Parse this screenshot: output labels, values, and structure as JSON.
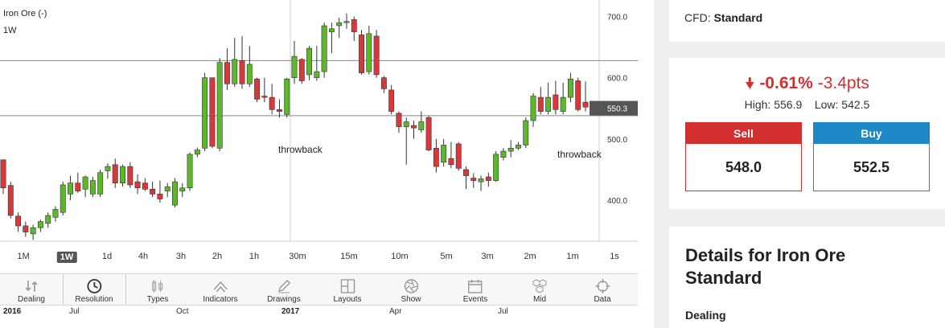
{
  "chart": {
    "instrument": "Iron Ore (-)",
    "period": "1W",
    "current_price_label": "550.3",
    "price_axis": [
      "700.0",
      "600.0",
      "500.0",
      "400.0"
    ],
    "annotations": [
      "throwback",
      "throwback"
    ],
    "colors": {
      "up": "#5cb82a",
      "down": "#d9383a",
      "price_tag": "#555555"
    }
  },
  "chart_data": {
    "type": "candlestick",
    "ylim": [
      333,
      727
    ],
    "y_ticks": [
      700,
      600,
      500,
      400
    ],
    "horizontal_lines": [
      628,
      538
    ],
    "last_price": 550.3,
    "candles": [
      {
        "o": 466,
        "h": 466,
        "l": 410,
        "c": 420
      },
      {
        "o": 424,
        "h": 430,
        "l": 370,
        "c": 375
      },
      {
        "o": 374,
        "h": 380,
        "l": 348,
        "c": 358
      },
      {
        "o": 358,
        "h": 365,
        "l": 340,
        "c": 348
      },
      {
        "o": 345,
        "h": 360,
        "l": 335,
        "c": 355
      },
      {
        "o": 355,
        "h": 368,
        "l": 348,
        "c": 365
      },
      {
        "o": 362,
        "h": 380,
        "l": 355,
        "c": 375
      },
      {
        "o": 372,
        "h": 390,
        "l": 365,
        "c": 385
      },
      {
        "o": 380,
        "h": 430,
        "l": 375,
        "c": 425
      },
      {
        "o": 410,
        "h": 440,
        "l": 400,
        "c": 428
      },
      {
        "o": 428,
        "h": 445,
        "l": 412,
        "c": 415
      },
      {
        "o": 418,
        "h": 440,
        "l": 405,
        "c": 438
      },
      {
        "o": 410,
        "h": 438,
        "l": 405,
        "c": 432
      },
      {
        "o": 410,
        "h": 450,
        "l": 405,
        "c": 445
      },
      {
        "o": 448,
        "h": 460,
        "l": 435,
        "c": 455
      },
      {
        "o": 458,
        "h": 468,
        "l": 420,
        "c": 428
      },
      {
        "o": 428,
        "h": 458,
        "l": 422,
        "c": 455
      },
      {
        "o": 455,
        "h": 462,
        "l": 420,
        "c": 425
      },
      {
        "o": 430,
        "h": 442,
        "l": 410,
        "c": 420
      },
      {
        "o": 428,
        "h": 436,
        "l": 415,
        "c": 418
      },
      {
        "o": 418,
        "h": 430,
        "l": 405,
        "c": 410
      },
      {
        "o": 410,
        "h": 432,
        "l": 396,
        "c": 402
      },
      {
        "o": 415,
        "h": 428,
        "l": 405,
        "c": 422
      },
      {
        "o": 392,
        "h": 436,
        "l": 388,
        "c": 430
      },
      {
        "o": 415,
        "h": 428,
        "l": 405,
        "c": 420
      },
      {
        "o": 420,
        "h": 478,
        "l": 415,
        "c": 475
      },
      {
        "o": 475,
        "h": 486,
        "l": 470,
        "c": 482
      },
      {
        "o": 485,
        "h": 608,
        "l": 480,
        "c": 600
      },
      {
        "o": 600,
        "h": 598,
        "l": 485,
        "c": 488
      },
      {
        "o": 485,
        "h": 632,
        "l": 480,
        "c": 625
      },
      {
        "o": 625,
        "h": 648,
        "l": 580,
        "c": 590
      },
      {
        "o": 590,
        "h": 665,
        "l": 585,
        "c": 630
      },
      {
        "o": 628,
        "h": 668,
        "l": 582,
        "c": 590
      },
      {
        "o": 590,
        "h": 652,
        "l": 585,
        "c": 622
      },
      {
        "o": 598,
        "h": 600,
        "l": 560,
        "c": 565
      },
      {
        "o": 570,
        "h": 600,
        "l": 560,
        "c": 568
      },
      {
        "o": 568,
        "h": 590,
        "l": 540,
        "c": 548
      },
      {
        "o": 548,
        "h": 565,
        "l": 535,
        "c": 545
      },
      {
        "o": 540,
        "h": 600,
        "l": 535,
        "c": 598
      },
      {
        "o": 600,
        "h": 660,
        "l": 590,
        "c": 635
      },
      {
        "o": 630,
        "h": 632,
        "l": 590,
        "c": 595
      },
      {
        "o": 605,
        "h": 652,
        "l": 596,
        "c": 648
      },
      {
        "o": 600,
        "h": 652,
        "l": 595,
        "c": 610
      },
      {
        "o": 610,
        "h": 690,
        "l": 600,
        "c": 685
      },
      {
        "o": 675,
        "h": 690,
        "l": 640,
        "c": 680
      },
      {
        "o": 685,
        "h": 698,
        "l": 665,
        "c": 690
      },
      {
        "o": 690,
        "h": 705,
        "l": 680,
        "c": 692
      },
      {
        "o": 695,
        "h": 700,
        "l": 660,
        "c": 675
      },
      {
        "o": 670,
        "h": 678,
        "l": 605,
        "c": 608
      },
      {
        "o": 610,
        "h": 685,
        "l": 605,
        "c": 672
      },
      {
        "o": 668,
        "h": 678,
        "l": 600,
        "c": 605
      },
      {
        "o": 600,
        "h": 603,
        "l": 575,
        "c": 582
      },
      {
        "o": 580,
        "h": 588,
        "l": 540,
        "c": 545
      },
      {
        "o": 542,
        "h": 545,
        "l": 510,
        "c": 520
      },
      {
        "o": 520,
        "h": 535,
        "l": 458,
        "c": 528
      },
      {
        "o": 522,
        "h": 530,
        "l": 500,
        "c": 518
      },
      {
        "o": 515,
        "h": 545,
        "l": 510,
        "c": 528
      },
      {
        "o": 535,
        "h": 538,
        "l": 480,
        "c": 482
      },
      {
        "o": 485,
        "h": 500,
        "l": 445,
        "c": 455
      },
      {
        "o": 462,
        "h": 500,
        "l": 455,
        "c": 490
      },
      {
        "o": 468,
        "h": 495,
        "l": 452,
        "c": 458
      },
      {
        "o": 492,
        "h": 495,
        "l": 448,
        "c": 452
      },
      {
        "o": 450,
        "h": 455,
        "l": 418,
        "c": 440
      },
      {
        "o": 436,
        "h": 444,
        "l": 420,
        "c": 432
      },
      {
        "o": 430,
        "h": 440,
        "l": 415,
        "c": 435
      },
      {
        "o": 438,
        "h": 445,
        "l": 422,
        "c": 432
      },
      {
        "o": 432,
        "h": 480,
        "l": 430,
        "c": 475
      },
      {
        "o": 470,
        "h": 485,
        "l": 465,
        "c": 480
      },
      {
        "o": 480,
        "h": 498,
        "l": 470,
        "c": 485
      },
      {
        "o": 485,
        "h": 495,
        "l": 482,
        "c": 490
      },
      {
        "o": 490,
        "h": 535,
        "l": 485,
        "c": 530
      },
      {
        "o": 530,
        "h": 575,
        "l": 520,
        "c": 570
      },
      {
        "o": 568,
        "h": 585,
        "l": 540,
        "c": 545
      },
      {
        "o": 545,
        "h": 592,
        "l": 540,
        "c": 568
      },
      {
        "o": 572,
        "h": 595,
        "l": 540,
        "c": 548
      },
      {
        "o": 545,
        "h": 592,
        "l": 540,
        "c": 568
      },
      {
        "o": 568,
        "h": 608,
        "l": 560,
        "c": 598
      },
      {
        "o": 595,
        "h": 600,
        "l": 545,
        "c": 548
      },
      {
        "o": 560,
        "h": 594,
        "l": 545,
        "c": 552
      }
    ]
  },
  "resolutions": [
    {
      "label": "1M",
      "active": false
    },
    {
      "label": "1W",
      "active": true
    },
    {
      "label": "1d",
      "active": false
    },
    {
      "label": "4h",
      "active": false
    },
    {
      "label": "3h",
      "active": false
    },
    {
      "label": "2h",
      "active": false
    },
    {
      "label": "1h",
      "active": false
    },
    {
      "label": "30m",
      "active": false
    },
    {
      "label": "15m",
      "active": false
    },
    {
      "label": "10m",
      "active": false
    },
    {
      "label": "5m",
      "active": false
    },
    {
      "label": "3m",
      "active": false
    },
    {
      "label": "2m",
      "active": false
    },
    {
      "label": "1m",
      "active": false
    },
    {
      "label": "1s",
      "active": false
    }
  ],
  "toolbar": [
    {
      "label": "Dealing",
      "icon": "dealing-icon"
    },
    {
      "label": "Resolution",
      "icon": "clock-icon"
    },
    {
      "label": "Types",
      "icon": "candles-icon"
    },
    {
      "label": "Indicators",
      "icon": "indicators-icon"
    },
    {
      "label": "Drawings",
      "icon": "pencil-icon"
    },
    {
      "label": "Layouts",
      "icon": "layouts-icon"
    },
    {
      "label": "Show",
      "icon": "aperture-icon"
    },
    {
      "label": "Events",
      "icon": "events-icon"
    },
    {
      "label": "Mid",
      "icon": "hexagons-icon"
    },
    {
      "label": "Data",
      "icon": "crosshair-icon"
    }
  ],
  "timeline": [
    {
      "label": "2016",
      "year": true
    },
    {
      "label": "Jul",
      "year": false
    },
    {
      "label": "Oct",
      "year": false
    },
    {
      "label": "2017",
      "year": true
    },
    {
      "label": "Apr",
      "year": false
    },
    {
      "label": "Jul",
      "year": false
    }
  ],
  "sidebar": {
    "cfd_label": "CFD:",
    "cfd_value": "Standard",
    "change_pct": "-0.61%",
    "change_pts": "-3.4pts",
    "high_label": "High:",
    "high_value": "556.9",
    "low_label": "Low:",
    "low_value": "542.5",
    "sell_label": "Sell",
    "sell_price": "548.0",
    "buy_label": "Buy",
    "buy_price": "552.5",
    "details_title": "Details for Iron Ore Standard",
    "details_sub": "Dealing",
    "colors": {
      "sell": "#d32f2f",
      "buy": "#1e88c7",
      "change": "#d32f2f"
    }
  }
}
